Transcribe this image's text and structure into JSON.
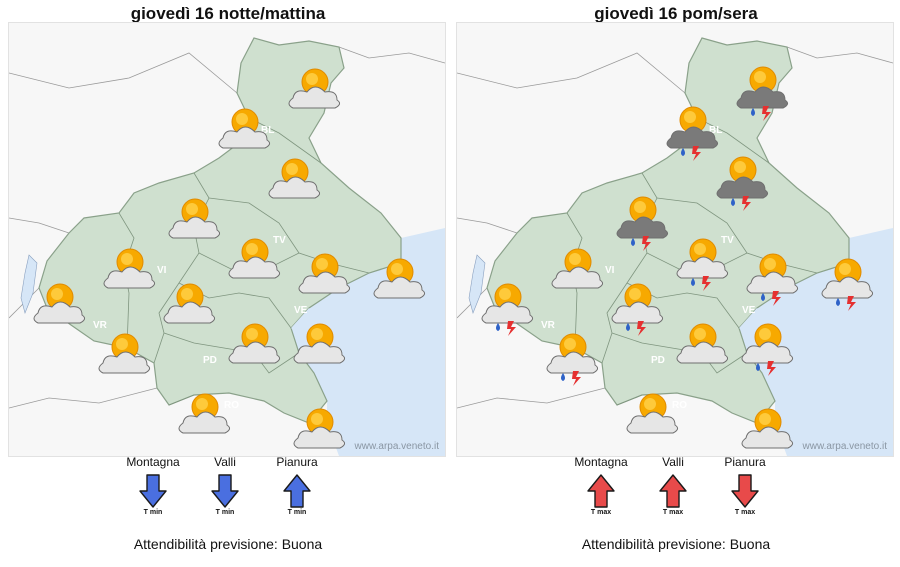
{
  "panels": [
    {
      "title": "giovedì 16 notte/mattina",
      "credit": "www.arpa.veneto.it",
      "legend": [
        {
          "label": "Montagna",
          "direction": "down",
          "color": "#4a6fe0",
          "tlabel": "T min"
        },
        {
          "label": "Valli",
          "direction": "down",
          "color": "#4a6fe0",
          "tlabel": "T min"
        },
        {
          "label": "Pianura",
          "direction": "up",
          "color": "#4a6fe0",
          "tlabel": "T min"
        }
      ],
      "reliability_label": "Attendibilità previsione:",
      "reliability_value": "Buona"
    },
    {
      "title": "giovedì 16 pom/sera",
      "credit": "www.arpa.veneto.it",
      "legend": [
        {
          "label": "Montagna",
          "direction": "up",
          "color": "#e84a4a",
          "tlabel": "T max"
        },
        {
          "label": "Valli",
          "direction": "up",
          "color": "#e84a4a",
          "tlabel": "T max"
        },
        {
          "label": "Pianura",
          "direction": "down",
          "color": "#e84a4a",
          "tlabel": "T max"
        }
      ],
      "reliability_label": "Attendibilità previsione:",
      "reliability_value": "Buona"
    }
  ],
  "province_labels": [
    "BL",
    "TV",
    "VI",
    "VR",
    "PD",
    "VE",
    "RO"
  ],
  "map_colors": {
    "land": "#cfe0cf",
    "land_stroke": "#8aa18a",
    "sea": "#d6e6f7",
    "outside": "#f7f7f7"
  },
  "left_icons": [
    "sun-cloud-icon",
    "sun-cloud-icon",
    "sun-cloud-icon",
    "sun-cloud-icon",
    "sun-cloud-icon",
    "sun-cloud-icon",
    "sun-cloud-icon",
    "sun-cloud-icon",
    "sun-cloud-icon",
    "sun-cloud-icon",
    "sun-cloud-icon",
    "sun-cloud-icon",
    "sun-cloud-icon",
    "sun-cloud-icon",
    "sun-cloud-icon"
  ],
  "right_icons": [
    "storm-icon",
    "storm-icon",
    "storm-icon",
    "storm-icon",
    "sun-cloud-storm-icon",
    "sun-cloud-storm-icon",
    "sun-cloud-storm-icon",
    "sun-cloud-icon",
    "sun-cloud-storm-icon",
    "sun-cloud-storm-icon",
    "sun-cloud-storm-icon",
    "sun-cloud-icon",
    "sun-cloud-storm-icon",
    "sun-cloud-icon",
    "sun-cloud-icon"
  ]
}
